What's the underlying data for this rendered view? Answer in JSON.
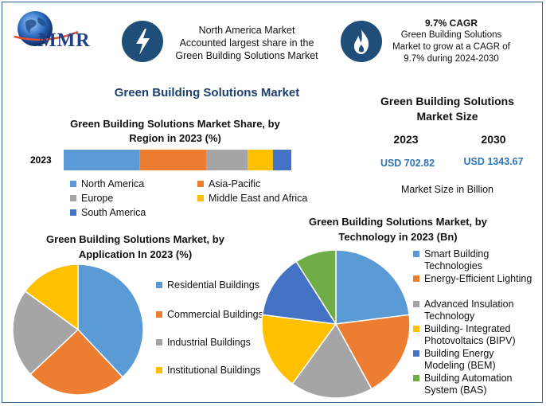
{
  "logo": {
    "text": "MMR"
  },
  "highlights": [
    {
      "icon": "lightning-icon",
      "lines": [
        "North America Market",
        "Accounted largest share in the",
        "Green Building Solutions Market"
      ]
    },
    {
      "icon": "flame-icon",
      "title": "9.7% CAGR",
      "lines": [
        "Green Building Solutions",
        "Market to grow at a CAGR of",
        "9.7% during 2024-2030"
      ]
    }
  ],
  "main_title": "Green Building Solutions Market",
  "market_size": {
    "title_lines": [
      "Green Building Solutions",
      "Market Size"
    ],
    "years": [
      "2023",
      "2030"
    ],
    "values": [
      "USD 702.82",
      "USD 1343.67"
    ],
    "footnote": "Market Size in Billion"
  },
  "colors": {
    "blue": "#5b9bd5",
    "orange": "#ed7d31",
    "gray": "#a5a5a5",
    "yellow": "#ffc000",
    "darkblue": "#4472c4",
    "green": "#70ad47",
    "navy": "#1f4e79",
    "accent_text": "#2e75b6"
  },
  "chart_data": [
    {
      "type": "bar",
      "orientation": "horizontal-stacked",
      "title_lines": [
        "Green Building Solutions Market Share, by",
        "Region in 2023 (%)"
      ],
      "categories": [
        "2023"
      ],
      "series": [
        {
          "name": "North America",
          "values": [
            33
          ]
        },
        {
          "name": "Asia-Pacific",
          "values": [
            29
          ]
        },
        {
          "name": "Europe",
          "values": [
            18
          ]
        },
        {
          "name": "Middle East and Africa",
          "values": [
            11
          ]
        },
        {
          "name": "South America",
          "values": [
            8
          ]
        }
      ],
      "legend": "bottom"
    },
    {
      "type": "pie",
      "title_lines": [
        "Green Building Solutions Market, by",
        "Application In 2023 (%)"
      ],
      "labels": [
        "Residential Buildings",
        "Commercial Buildings",
        "Industrial Buildings",
        "Institutional Buildings"
      ],
      "values": [
        38,
        25,
        22,
        15
      ],
      "legend": "right"
    },
    {
      "type": "pie",
      "title_lines": [
        "Green Building Solutions Market, by",
        "Technology in 2023 (Bn)"
      ],
      "labels": [
        [
          "Smart Building",
          "Technologies"
        ],
        [
          "Energy-Efficient Lighting"
        ],
        [
          "Advanced Insulation",
          "Technology"
        ],
        [
          "Building- Integrated",
          "Photovoltaics (BIPV)"
        ],
        [
          "Building Energy",
          "Modeling (BEM)"
        ],
        [
          "Building Automation",
          "System (BAS)"
        ]
      ],
      "values": [
        23,
        19,
        18,
        17,
        14,
        9
      ],
      "legend": "right"
    }
  ]
}
